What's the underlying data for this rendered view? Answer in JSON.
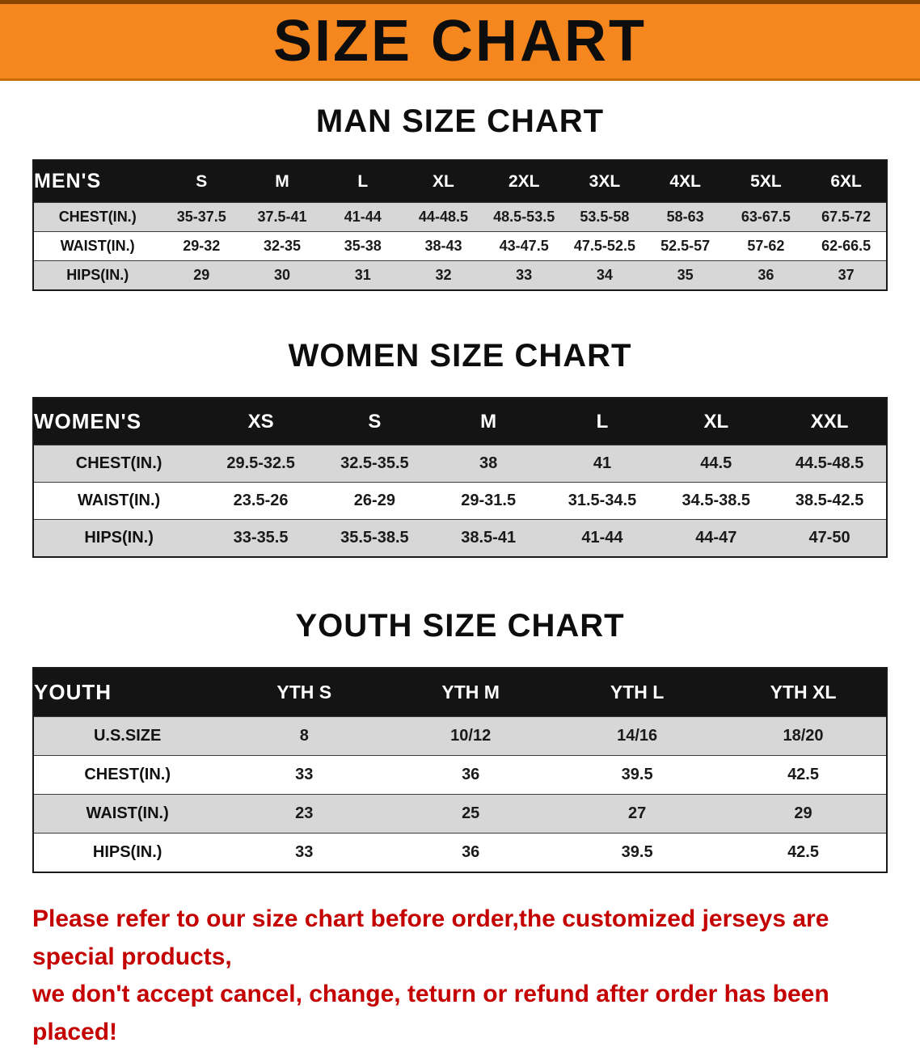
{
  "banner": {
    "title": "SIZE CHART"
  },
  "colors": {
    "banner_bg": "#f6871e",
    "table_header_bg": "#141414",
    "row_shade": "#d7d7d7",
    "note_text": "#c40000"
  },
  "sections": [
    {
      "id": "men",
      "heading": "MAN SIZE CHART",
      "table": {
        "header_label": "MEN'S",
        "columns": [
          "S",
          "M",
          "L",
          "XL",
          "2XL",
          "3XL",
          "4XL",
          "5XL",
          "6XL"
        ],
        "rows": [
          {
            "label": "CHEST(IN.)",
            "values": [
              "35-37.5",
              "37.5-41",
              "41-44",
              "44-48.5",
              "48.5-53.5",
              "53.5-58",
              "58-63",
              "63-67.5",
              "67.5-72"
            ]
          },
          {
            "label": "WAIST(IN.)",
            "values": [
              "29-32",
              "32-35",
              "35-38",
              "38-43",
              "43-47.5",
              "47.5-52.5",
              "52.5-57",
              "57-62",
              "62-66.5"
            ]
          },
          {
            "label": "HIPS(IN.)",
            "values": [
              "29",
              "30",
              "31",
              "32",
              "33",
              "34",
              "35",
              "36",
              "37"
            ]
          }
        ]
      }
    },
    {
      "id": "women",
      "heading": "WOMEN SIZE CHART",
      "table": {
        "header_label": "WOMEN'S",
        "columns": [
          "XS",
          "S",
          "M",
          "L",
          "XL",
          "XXL"
        ],
        "rows": [
          {
            "label": "CHEST(IN.)",
            "values": [
              "29.5-32.5",
              "32.5-35.5",
              "38",
              "41",
              "44.5",
              "44.5-48.5"
            ]
          },
          {
            "label": "WAIST(IN.)",
            "values": [
              "23.5-26",
              "26-29",
              "29-31.5",
              "31.5-34.5",
              "34.5-38.5",
              "38.5-42.5"
            ]
          },
          {
            "label": "HIPS(IN.)",
            "values": [
              "33-35.5",
              "35.5-38.5",
              "38.5-41",
              "41-44",
              "44-47",
              "47-50"
            ]
          }
        ]
      }
    },
    {
      "id": "youth",
      "heading": "YOUTH SIZE CHART",
      "table": {
        "header_label": "YOUTH",
        "columns": [
          "YTH S",
          "YTH M",
          "YTH L",
          "YTH XL"
        ],
        "rows": [
          {
            "label": "U.S.SIZE",
            "values": [
              "8",
              "10/12",
              "14/16",
              "18/20"
            ]
          },
          {
            "label": "CHEST(IN.)",
            "values": [
              "33",
              "36",
              "39.5",
              "42.5"
            ]
          },
          {
            "label": "WAIST(IN.)",
            "values": [
              "23",
              "25",
              "27",
              "29"
            ]
          },
          {
            "label": "HIPS(IN.)",
            "values": [
              "33",
              "36",
              "39.5",
              "42.5"
            ]
          }
        ]
      }
    }
  ],
  "footer": {
    "line1": "Please refer to our size chart before order,the customized jerseys are special products,",
    "line2": "we don't accept cancel, change, teturn or refund after order has been placed!"
  }
}
